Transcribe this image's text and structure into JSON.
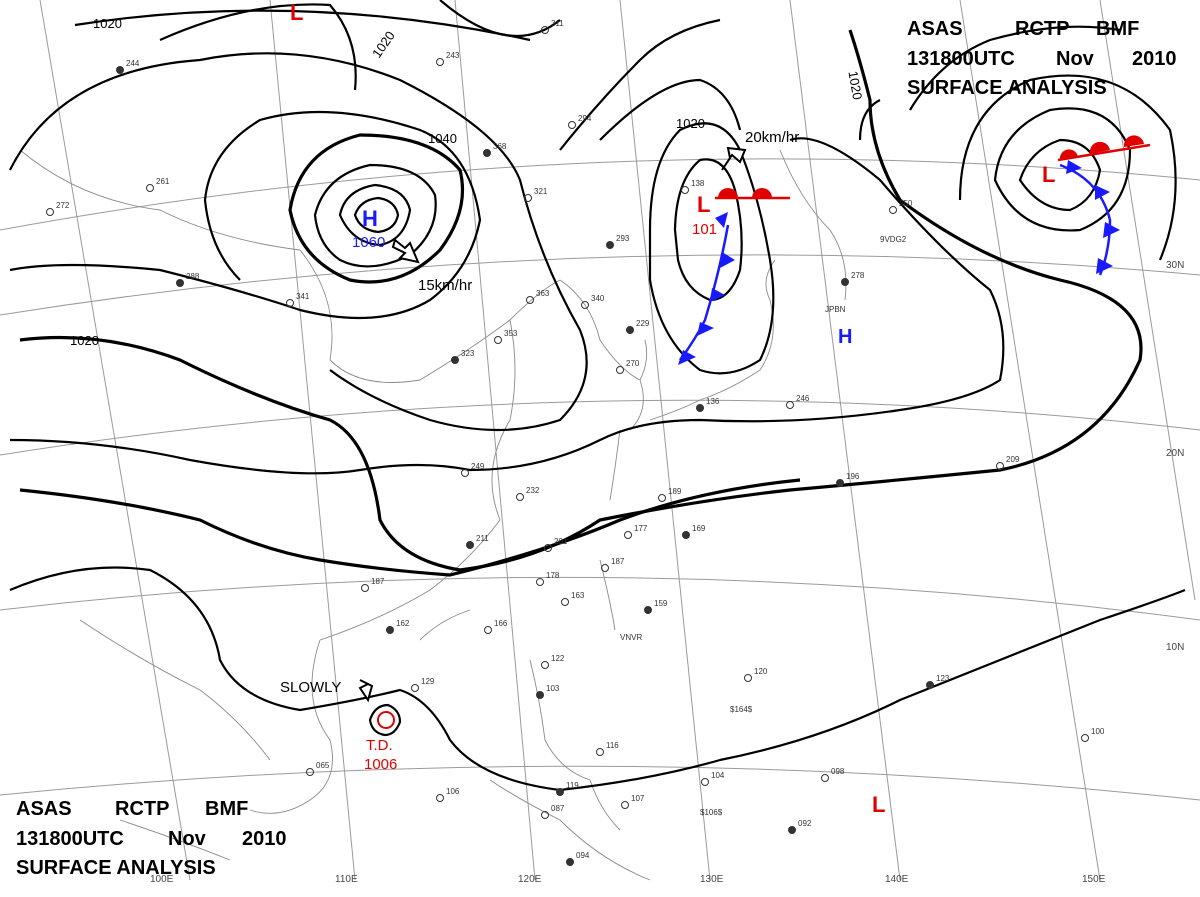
{
  "header_top": {
    "line1": [
      "ASAS",
      "RCTP",
      "BMF"
    ],
    "line2": [
      "131800UTC",
      "Nov",
      "2010"
    ],
    "line3": "SURFACE  ANALYSIS"
  },
  "header_bottom": {
    "line1": [
      "ASAS",
      "RCTP",
      "BMF"
    ],
    "line2": [
      "131800UTC",
      "Nov",
      "2010"
    ],
    "line3": "SURFACE  ANALYSIS"
  },
  "isobar_labels": [
    "1020",
    "1020",
    "1040",
    "1020",
    "1020",
    "1020"
  ],
  "systems": {
    "high_1": {
      "symbol": "H",
      "pressure": "1060",
      "motion": "15km/hr",
      "color": "#1a1aff"
    },
    "high_2": {
      "symbol": "H",
      "color": "#1a1aff"
    },
    "low_1": {
      "symbol": "L",
      "pressure": "101",
      "motion": "20km/hr",
      "color": "#e00000"
    },
    "low_2": {
      "symbol": "L",
      "color": "#e00000"
    },
    "low_3": {
      "symbol": "L",
      "color": "#e00000"
    },
    "low_4": {
      "symbol": "L",
      "color": "#e00000"
    },
    "td": {
      "label": "T.D.",
      "pressure": "1006",
      "motion": "SLOWLY",
      "color": "#e00000"
    }
  },
  "lat_labels": [
    "30N",
    "20N",
    "10N"
  ],
  "lon_labels": [
    "100E",
    "110E",
    "120E",
    "130E",
    "140E",
    "150E"
  ],
  "station_names": [
    "JPBN",
    "9VDG2",
    "VNVR",
    "$164$",
    "$106$"
  ],
  "station_values": [
    "244",
    "243",
    "311",
    "368",
    "294",
    "321",
    "293",
    "363",
    "340",
    "229",
    "270",
    "246",
    "278",
    "250",
    "209",
    "196",
    "189",
    "177",
    "169",
    "201",
    "187",
    "159",
    "178",
    "163",
    "162",
    "166",
    "187",
    "211",
    "232",
    "249",
    "323",
    "353",
    "341",
    "288",
    "272",
    "261",
    "136",
    "138",
    "122",
    "103",
    "129",
    "120",
    "123",
    "104",
    "098",
    "092",
    "100",
    "106",
    "119",
    "107",
    "116",
    "094",
    "065",
    "087"
  ],
  "colors": {
    "front_blue": "#1a1aff",
    "front_red": "#e00000",
    "isobar": "#000000",
    "grid": "#9a9a9a"
  }
}
